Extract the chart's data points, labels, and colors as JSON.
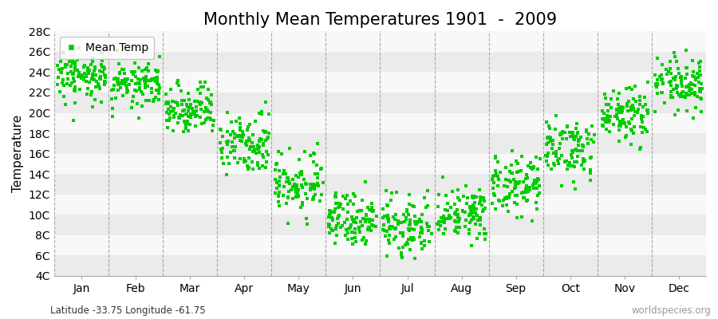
{
  "title": "Monthly Mean Temperatures 1901  -  2009",
  "ylabel": "Temperature",
  "subtitle": "Latitude -33.75 Longitude -61.75",
  "watermark": "worldspecies.org",
  "legend_label": "Mean Temp",
  "marker_color": "#00cc00",
  "marker_size": 5,
  "months": [
    "Jan",
    "Feb",
    "Mar",
    "Apr",
    "May",
    "Jun",
    "Jul",
    "Aug",
    "Sep",
    "Oct",
    "Nov",
    "Dec"
  ],
  "month_means": [
    23.5,
    22.8,
    20.5,
    17.0,
    13.0,
    9.5,
    8.8,
    10.2,
    12.8,
    16.5,
    19.8,
    22.8
  ],
  "month_stds": [
    1.2,
    1.3,
    1.3,
    1.4,
    1.5,
    1.3,
    1.4,
    1.4,
    1.4,
    1.5,
    1.3,
    1.3
  ],
  "ylim": [
    4,
    28
  ],
  "yticks": [
    4,
    6,
    8,
    10,
    12,
    14,
    16,
    18,
    20,
    22,
    24,
    26,
    28
  ],
  "ytick_labels": [
    "4C",
    "6C",
    "8C",
    "10C",
    "12C",
    "14C",
    "16C",
    "18C",
    "20C",
    "22C",
    "24C",
    "26C",
    "28C"
  ],
  "n_years": 109,
  "background_color": "#ffffff",
  "band_colors": [
    "#ebebeb",
    "#f8f8f8"
  ],
  "title_fontsize": 15,
  "axis_fontsize": 11,
  "tick_fontsize": 10,
  "vline_color": "#888888",
  "vline_positions": [
    0,
    1,
    2,
    3,
    4,
    5,
    6,
    7,
    8,
    9,
    10,
    11,
    12
  ]
}
